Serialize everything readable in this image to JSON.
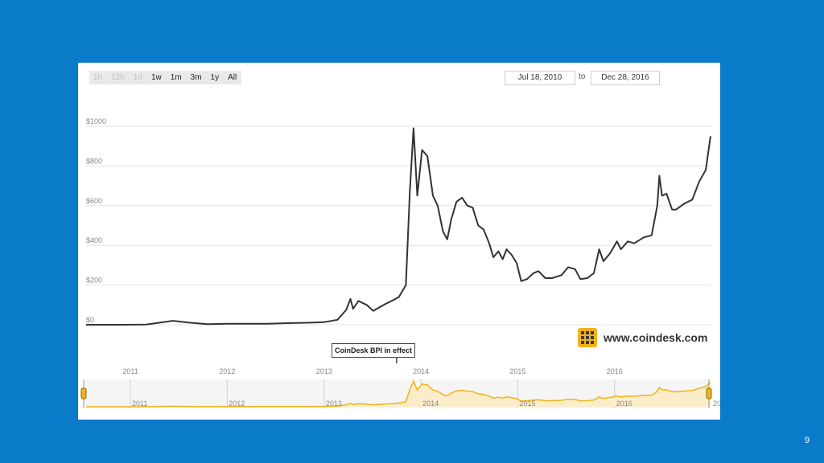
{
  "toolbar": {
    "zoom_buttons": [
      {
        "label": "1h",
        "enabled": false
      },
      {
        "label": "12h",
        "enabled": false
      },
      {
        "label": "1d",
        "enabled": false
      },
      {
        "label": "1w",
        "enabled": true
      },
      {
        "label": "1m",
        "enabled": true
      },
      {
        "label": "3m",
        "enabled": true
      },
      {
        "label": "1y",
        "enabled": true
      },
      {
        "label": "All",
        "enabled": true
      }
    ],
    "date_from": "Jul 18, 2010",
    "to_label": "to",
    "date_to": "Dec 28, 2016"
  },
  "annotation": "CoinDesk BPI in effect",
  "logo_text": "www.coindesk.com",
  "slide_number": "9",
  "colors": {
    "background": "#0a7bc8",
    "price_line": "#333333",
    "navigator_line": "#f2b218",
    "navigator_fill": "#fbedc9",
    "logo": "#f2b218"
  },
  "chart_data": {
    "type": "line",
    "title": "",
    "xlabel": "",
    "ylabel": "",
    "ylim": [
      0,
      1000
    ],
    "xlim": [
      "2010-07-18",
      "2016-12-28"
    ],
    "y_ticks": [
      0,
      200,
      400,
      600,
      800,
      1000
    ],
    "y_tick_labels": [
      "$0",
      "$200",
      "$400",
      "$600",
      "$800",
      "$1000"
    ],
    "x_tick_labels": [
      "2011",
      "2012",
      "2013",
      "2014",
      "2015",
      "2016"
    ],
    "navigator_tick_labels": [
      "2011",
      "2012",
      "2013",
      "2014",
      "2015",
      "2016",
      "20"
    ],
    "grid": true,
    "legend": "none",
    "series": [
      {
        "x": [
          "2010-07-18",
          "2010-12-01",
          "2011-03-01",
          "2011-06-10",
          "2011-08-15",
          "2011-10-20",
          "2012-01-01",
          "2012-06-01",
          "2012-08-15",
          "2012-11-01",
          "2013-01-01",
          "2013-02-20",
          "2013-03-25",
          "2013-04-10",
          "2013-04-20",
          "2013-05-10",
          "2013-06-10",
          "2013-07-05",
          "2013-08-20",
          "2013-09-20",
          "2013-10-10",
          "2013-11-05",
          "2013-11-20",
          "2013-12-04",
          "2013-12-18",
          "2014-01-05",
          "2014-01-25",
          "2014-02-15",
          "2014-03-05",
          "2014-03-25",
          "2014-04-10",
          "2014-04-25",
          "2014-05-15",
          "2014-06-05",
          "2014-06-25",
          "2014-07-15",
          "2014-08-05",
          "2014-08-25",
          "2014-09-15",
          "2014-10-01",
          "2014-10-20",
          "2014-11-05",
          "2014-11-20",
          "2014-12-10",
          "2014-12-28",
          "2015-01-14",
          "2015-02-05",
          "2015-03-01",
          "2015-03-20",
          "2015-04-15",
          "2015-05-10",
          "2015-06-15",
          "2015-07-10",
          "2015-08-05",
          "2015-08-25",
          "2015-09-20",
          "2015-10-15",
          "2015-11-04",
          "2015-11-20",
          "2015-12-15",
          "2016-01-10",
          "2016-01-25",
          "2016-02-20",
          "2016-03-15",
          "2016-04-20",
          "2016-05-20",
          "2016-06-10",
          "2016-06-18",
          "2016-06-28",
          "2016-07-15",
          "2016-08-05",
          "2016-08-20",
          "2016-09-20",
          "2016-10-20",
          "2016-11-15",
          "2016-12-10",
          "2016-12-28"
        ],
        "y": [
          0,
          0,
          1,
          20,
          10,
          3,
          5,
          5,
          8,
          10,
          13,
          25,
          75,
          130,
          80,
          120,
          100,
          70,
          105,
          125,
          140,
          200,
          670,
          990,
          650,
          880,
          850,
          650,
          600,
          470,
          430,
          530,
          620,
          640,
          600,
          590,
          500,
          480,
          410,
          340,
          370,
          330,
          380,
          350,
          310,
          220,
          230,
          260,
          270,
          235,
          235,
          250,
          290,
          280,
          230,
          235,
          260,
          380,
          320,
          360,
          420,
          380,
          420,
          410,
          440,
          450,
          600,
          750,
          650,
          660,
          580,
          580,
          610,
          630,
          720,
          780,
          950
        ]
      }
    ]
  }
}
